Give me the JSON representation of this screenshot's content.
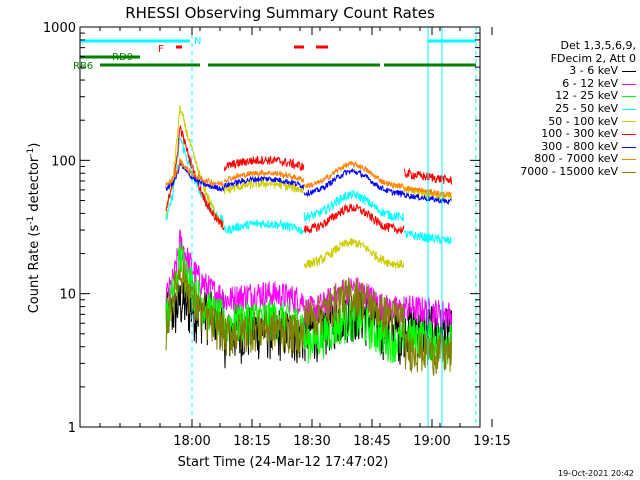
{
  "chart_data": {
    "type": "line",
    "title": "RHESSI Observing Summary Count Rates",
    "xlabel": "Start Time (24-Mar-12 17:47:02)",
    "ylabel_main": "Count Rate (s",
    "ylabel_sup1": "-1",
    "ylabel_mid": " detector",
    "ylabel_sup2": "-1",
    "ylabel_end": ")",
    "y_scale": "log",
    "ylim": [
      1,
      1000
    ],
    "xlim_minutes": [
      -15,
      85
    ],
    "x_ticks": [
      {
        "t": 13,
        "label": "18:00"
      },
      {
        "t": 28,
        "label": "18:15"
      },
      {
        "t": 43,
        "label": "18:30"
      },
      {
        "t": 58,
        "label": "18:45"
      },
      {
        "t": 73,
        "label": "19:00"
      },
      {
        "t": 88,
        "label": "19:15"
      }
    ],
    "y_ticks": [
      {
        "v": 1,
        "label": "1"
      },
      {
        "v": 10,
        "label": "10"
      },
      {
        "v": 100,
        "label": "100"
      },
      {
        "v": 1000,
        "label": "1000"
      }
    ],
    "legend_header": [
      "Det 1,3,5,6,9,",
      "FDecim 2, Att 0"
    ],
    "series": [
      {
        "name": "3 - 6 keV",
        "color": "#000000"
      },
      {
        "name": "6 - 12 keV",
        "color": "#ff00ff"
      },
      {
        "name": "12 - 25 keV",
        "color": "#00ff00"
      },
      {
        "name": "25 - 50 keV",
        "color": "#00ffff"
      },
      {
        "name": "50 - 100 keV",
        "color": "#cccc00"
      },
      {
        "name": "100 - 300 keV",
        "color": "#ff0000"
      },
      {
        "name": "300 - 800 keV",
        "color": "#0000ff"
      },
      {
        "name": "800 - 7000 keV",
        "color": "#ff8000"
      },
      {
        "name": "7000 - 15000 keV",
        "color": "#808000"
      }
    ],
    "flag_labels": {
      "night": "N",
      "flare": "F",
      "rd": "RD0",
      "rb": "RB6"
    },
    "timestamp": "19-Oct-2021 20:42"
  }
}
